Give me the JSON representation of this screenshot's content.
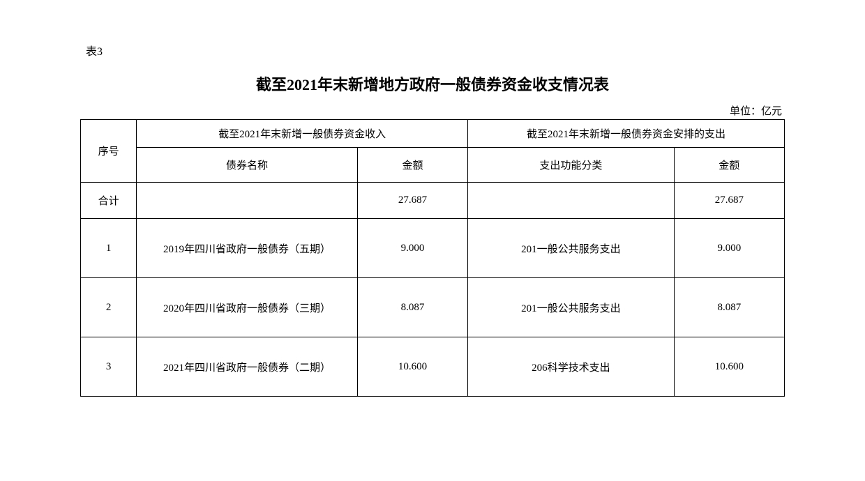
{
  "document": {
    "table_label": "表3",
    "title": "截至2021年末新增地方政府一般债券资金收支情况表",
    "unit_label": "单位：亿元"
  },
  "table": {
    "headers": {
      "seq": "序号",
      "income_group": "截至2021年末新增一般债券资金收入",
      "expense_group": "截至2021年末新增一般债券资金安排的支出",
      "bond_name": "债券名称",
      "amount": "金额",
      "expense_category": "支出功能分类",
      "amount2": "金额"
    },
    "total": {
      "label": "合计",
      "bond_name": "",
      "income_amount": "27.687",
      "expense_category": "",
      "expense_amount": "27.687"
    },
    "rows": [
      {
        "seq": "1",
        "bond_name": "2019年四川省政府一般债券（五期）",
        "income_amount": "9.000",
        "expense_category": "201一般公共服务支出",
        "expense_amount": "9.000"
      },
      {
        "seq": "2",
        "bond_name": "2020年四川省政府一般债券（三期）",
        "income_amount": "8.087",
        "expense_category": "201一般公共服务支出",
        "expense_amount": "8.087"
      },
      {
        "seq": "3",
        "bond_name": "2021年四川省政府一般债券（二期）",
        "income_amount": "10.600",
        "expense_category": "206科学技术支出",
        "expense_amount": "10.600"
      }
    ]
  },
  "styling": {
    "font_family": "SimSun",
    "title_fontsize": 22,
    "body_fontsize": 15,
    "border_color": "#000000",
    "background_color": "#ffffff",
    "text_color": "#000000"
  }
}
